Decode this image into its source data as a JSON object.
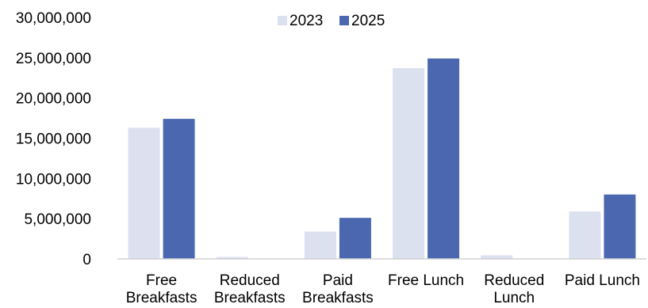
{
  "chart_data": {
    "type": "bar",
    "categories": [
      [
        "Free",
        "Breakfasts"
      ],
      [
        "Reduced",
        "Breakfasts"
      ],
      [
        "Paid",
        "Breakfasts"
      ],
      [
        "Free Lunch"
      ],
      [
        "Reduced",
        "Lunch"
      ],
      [
        "Paid Lunch"
      ]
    ],
    "series": [
      {
        "name": "2023",
        "color": "#dce1f0",
        "values": [
          16300000,
          250000,
          3400000,
          23700000,
          450000,
          5900000
        ]
      },
      {
        "name": "2025",
        "color": "#4a67b0",
        "values": [
          17400000,
          0,
          5100000,
          24900000,
          0,
          8000000
        ]
      }
    ],
    "title": "",
    "xlabel": "",
    "ylabel": "",
    "ylim": [
      0,
      30000000
    ],
    "yticks": [
      "0",
      "5,000,000",
      "10,000,000",
      "15,000,000",
      "20,000,000",
      "25,000,000",
      "30,000,000"
    ],
    "grid": false,
    "legend_position": "top-center",
    "axis_color": "#d0d0d0"
  }
}
